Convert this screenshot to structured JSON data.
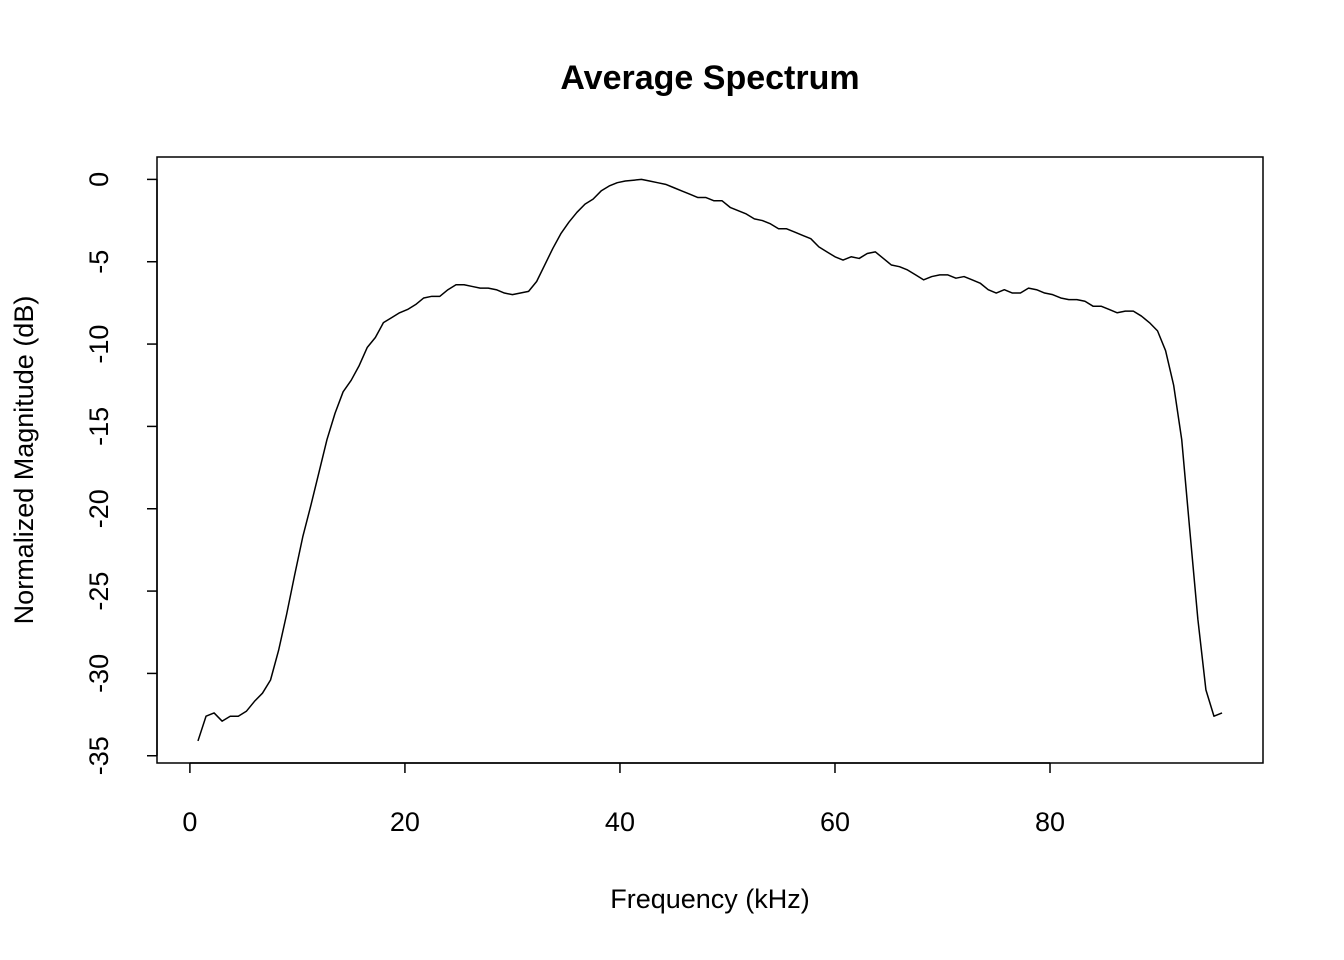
{
  "chart_data": {
    "type": "line",
    "title": "Average Spectrum",
    "x_label": "Frequency (kHz)",
    "y_label": "Normalized Magnitude (dB)",
    "x": [
      0.75,
      1.5,
      2.25,
      3,
      3.75,
      4.5,
      5.25,
      6,
      6.75,
      7.5,
      8.25,
      9,
      9.75,
      10.5,
      11.25,
      12,
      12.75,
      13.5,
      14.25,
      15,
      15.75,
      16.5,
      17.25,
      18,
      18.75,
      19.5,
      20.25,
      21,
      21.75,
      22.5,
      23.25,
      24,
      24.75,
      25.5,
      26.25,
      27,
      27.75,
      28.5,
      29.25,
      30,
      30.75,
      31.5,
      32.25,
      33,
      33.75,
      34.5,
      35.25,
      36,
      36.75,
      37.5,
      38.25,
      39,
      39.75,
      40.5,
      41.25,
      42,
      42.75,
      43.5,
      44.25,
      45,
      45.75,
      46.5,
      47.25,
      48,
      48.75,
      49.5,
      50.25,
      51,
      51.75,
      52.5,
      53.25,
      54,
      54.75,
      55.5,
      56.25,
      57,
      57.75,
      58.5,
      59.25,
      60,
      60.75,
      61.5,
      62.25,
      63,
      63.75,
      64.5,
      65.25,
      66,
      66.75,
      67.5,
      68.25,
      69,
      69.75,
      70.5,
      71.25,
      72,
      72.75,
      73.5,
      74.25,
      75,
      75.75,
      76.5,
      77.25,
      78,
      78.75,
      79.5,
      80.25,
      81,
      81.75,
      82.5,
      83.25,
      84,
      84.75,
      85.5,
      86.25,
      87,
      87.75,
      88.5,
      89.25,
      90,
      90.75,
      91.5,
      92.25,
      93,
      93.75,
      94.5,
      95.25,
      96
    ],
    "series": [
      {
        "color": "#000000",
        "values": [
          -34.1,
          -32.6,
          -32.4,
          -32.9,
          -32.6,
          -32.6,
          -32.3,
          -31.7,
          -31.2,
          -30.4,
          -28.6,
          -26.4,
          -24.0,
          -21.7,
          -19.8,
          -17.8,
          -15.8,
          -14.2,
          -12.9,
          -12.2,
          -11.3,
          -10.2,
          -9.6,
          -8.7,
          -8.4,
          -8.1,
          -7.9,
          -7.6,
          -7.2,
          -7.1,
          -7.1,
          -6.7,
          -6.4,
          -6.4,
          -6.5,
          -6.6,
          -6.6,
          -6.7,
          -6.9,
          -7.0,
          -6.9,
          -6.8,
          -6.2,
          -5.2,
          -4.2,
          -3.3,
          -2.6,
          -2.0,
          -1.5,
          -1.2,
          -0.7,
          -0.4,
          -0.2,
          -0.1,
          -0.05,
          0,
          -0.1,
          -0.2,
          -0.3,
          -0.5,
          -0.7,
          -0.9,
          -1.1,
          -1.1,
          -1.3,
          -1.3,
          -1.7,
          -1.9,
          -2.1,
          -2.4,
          -2.5,
          -2.7,
          -3.0,
          -3.0,
          -3.2,
          -3.4,
          -3.6,
          -4.1,
          -4.4,
          -4.7,
          -4.9,
          -4.7,
          -4.8,
          -4.5,
          -4.4,
          -4.8,
          -5.2,
          -5.3,
          -5.5,
          -5.8,
          -6.1,
          -5.9,
          -5.8,
          -5.8,
          -6.0,
          -5.9,
          -6.1,
          -6.3,
          -6.7,
          -6.9,
          -6.7,
          -6.9,
          -6.9,
          -6.6,
          -6.7,
          -6.9,
          -7.0,
          -7.2,
          -7.3,
          -7.3,
          -7.4,
          -7.7,
          -7.7,
          -7.9,
          -8.1,
          -8.0,
          -8.0,
          -8.3,
          -8.7,
          -9.2,
          -10.4,
          -12.5,
          -15.8,
          -21.3,
          -26.7,
          -31.0,
          -32.6,
          -32.4
        ]
      }
    ],
    "xlim": [
      -3.06,
      99.81
    ],
    "xticks": [
      0,
      20,
      40,
      60,
      80
    ],
    "ylim": [
      -35.44,
      1.36
    ],
    "yticks": [
      0,
      -5,
      -10,
      -15,
      -20,
      -25,
      -30,
      -35
    ]
  }
}
